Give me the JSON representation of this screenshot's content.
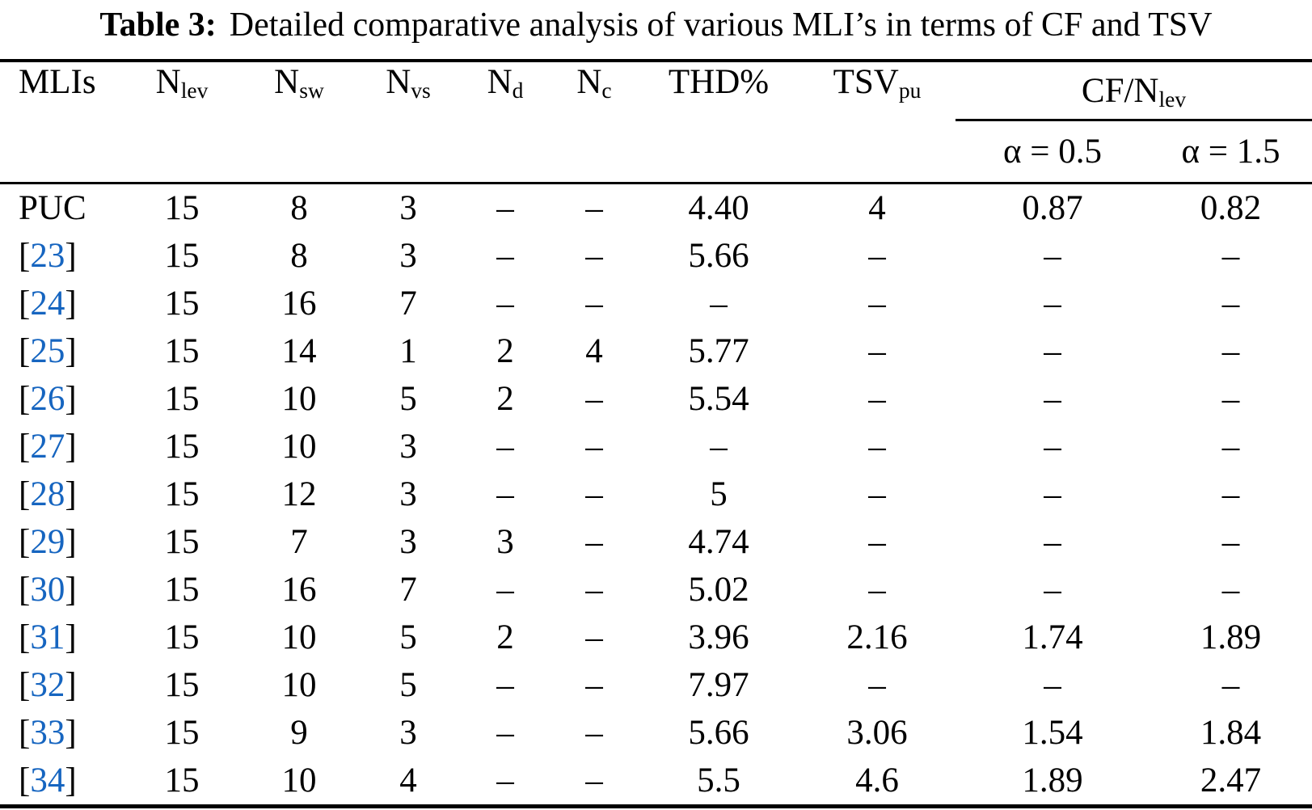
{
  "title": {
    "label": "Table 3:",
    "text": "Detailed comparative analysis of various MLI’s in terms of CF and TSV"
  },
  "colors": {
    "citation_blue": "#1665c0",
    "text": "#000000",
    "background": "#ffffff",
    "rule": "#000000"
  },
  "table": {
    "headers": {
      "mlis": "MLIs",
      "n_lev": {
        "base": "N",
        "sub": "lev"
      },
      "n_sw": {
        "base": "N",
        "sub": "sw"
      },
      "n_vs": {
        "base": "N",
        "sub": "vs"
      },
      "n_d": {
        "base": "N",
        "sub": "d"
      },
      "n_c": {
        "base": "N",
        "sub": "c"
      },
      "thd": "THD%",
      "tsv": {
        "base": "TSV",
        "sub": "pu"
      },
      "cf": {
        "base": "CF/N",
        "sub": "lev"
      },
      "alpha05": "α = 0.5",
      "alpha15": "α = 1.5"
    },
    "col_keys": [
      "n_lev",
      "n_sw",
      "n_vs",
      "n_d",
      "n_c",
      "thd",
      "tsv",
      "cf_a05",
      "cf_a15"
    ],
    "rows": [
      {
        "mli": "PUC",
        "citation": false,
        "values": [
          "15",
          "8",
          "3",
          "–",
          "–",
          "4.40",
          "4",
          "0.87",
          "0.82"
        ]
      },
      {
        "mli": "23",
        "citation": true,
        "values": [
          "15",
          "8",
          "3",
          "–",
          "–",
          "5.66",
          "–",
          "–",
          "–"
        ]
      },
      {
        "mli": "24",
        "citation": true,
        "values": [
          "15",
          "16",
          "7",
          "–",
          "–",
          "–",
          "–",
          "–",
          "–"
        ]
      },
      {
        "mli": "25",
        "citation": true,
        "values": [
          "15",
          "14",
          "1",
          "2",
          "4",
          "5.77",
          "–",
          "–",
          "–"
        ]
      },
      {
        "mli": "26",
        "citation": true,
        "values": [
          "15",
          "10",
          "5",
          "2",
          "–",
          "5.54",
          "–",
          "–",
          "–"
        ]
      },
      {
        "mli": "27",
        "citation": true,
        "values": [
          "15",
          "10",
          "3",
          "–",
          "–",
          "–",
          "–",
          "–",
          "–"
        ]
      },
      {
        "mli": "28",
        "citation": true,
        "values": [
          "15",
          "12",
          "3",
          "–",
          "–",
          "5",
          "–",
          "–",
          "–"
        ]
      },
      {
        "mli": "29",
        "citation": true,
        "values": [
          "15",
          "7",
          "3",
          "3",
          "–",
          "4.74",
          "–",
          "–",
          "–"
        ]
      },
      {
        "mli": "30",
        "citation": true,
        "values": [
          "15",
          "16",
          "7",
          "–",
          "–",
          "5.02",
          "–",
          "–",
          "–"
        ]
      },
      {
        "mli": "31",
        "citation": true,
        "values": [
          "15",
          "10",
          "5",
          "2",
          "–",
          "3.96",
          "2.16",
          "1.74",
          "1.89"
        ]
      },
      {
        "mli": "32",
        "citation": true,
        "values": [
          "15",
          "10",
          "5",
          "–",
          "–",
          "7.97",
          "–",
          "–",
          "–"
        ]
      },
      {
        "mli": "33",
        "citation": true,
        "values": [
          "15",
          "9",
          "3",
          "–",
          "–",
          "5.66",
          "3.06",
          "1.54",
          "1.84"
        ]
      },
      {
        "mli": "34",
        "citation": true,
        "values": [
          "15",
          "10",
          "4",
          "–",
          "–",
          "5.5",
          "4.6",
          "1.89",
          "2.47"
        ]
      }
    ]
  },
  "chart_data": {
    "type": "table",
    "title": "Table 3: Detailed comparative analysis of various MLI’s in terms of CF and TSV",
    "columns": [
      "MLIs",
      "Nlev",
      "Nsw",
      "Nvs",
      "Nd",
      "Nc",
      "THD%",
      "TSVpu",
      "CF/Nlev α = 0.5",
      "CF/Nlev α = 1.5"
    ],
    "rows": [
      [
        "PUC",
        "15",
        "8",
        "3",
        "–",
        "–",
        "4.40",
        "4",
        "0.87",
        "0.82"
      ],
      [
        "[23]",
        "15",
        "8",
        "3",
        "–",
        "–",
        "5.66",
        "–",
        "–",
        "–"
      ],
      [
        "[24]",
        "15",
        "16",
        "7",
        "–",
        "–",
        "–",
        "–",
        "–",
        "–"
      ],
      [
        "[25]",
        "15",
        "14",
        "1",
        "2",
        "4",
        "5.77",
        "–",
        "–",
        "–"
      ],
      [
        "[26]",
        "15",
        "10",
        "5",
        "2",
        "–",
        "5.54",
        "–",
        "–",
        "–"
      ],
      [
        "[27]",
        "15",
        "10",
        "3",
        "–",
        "–",
        "–",
        "–",
        "–",
        "–"
      ],
      [
        "[28]",
        "15",
        "12",
        "3",
        "–",
        "–",
        "5",
        "–",
        "–",
        "–"
      ],
      [
        "[29]",
        "15",
        "7",
        "3",
        "3",
        "–",
        "4.74",
        "–",
        "–",
        "–"
      ],
      [
        "[30]",
        "15",
        "16",
        "7",
        "–",
        "–",
        "5.02",
        "–",
        "–",
        "–"
      ],
      [
        "[31]",
        "15",
        "10",
        "5",
        "2",
        "–",
        "3.96",
        "2.16",
        "1.74",
        "1.89"
      ],
      [
        "[32]",
        "15",
        "10",
        "5",
        "–",
        "–",
        "7.97",
        "–",
        "–",
        "–"
      ],
      [
        "[33]",
        "15",
        "9",
        "3",
        "–",
        "–",
        "5.66",
        "3.06",
        "1.54",
        "1.84"
      ],
      [
        "[34]",
        "15",
        "10",
        "4",
        "–",
        "–",
        "5.5",
        "4.6",
        "1.89",
        "2.47"
      ]
    ]
  }
}
